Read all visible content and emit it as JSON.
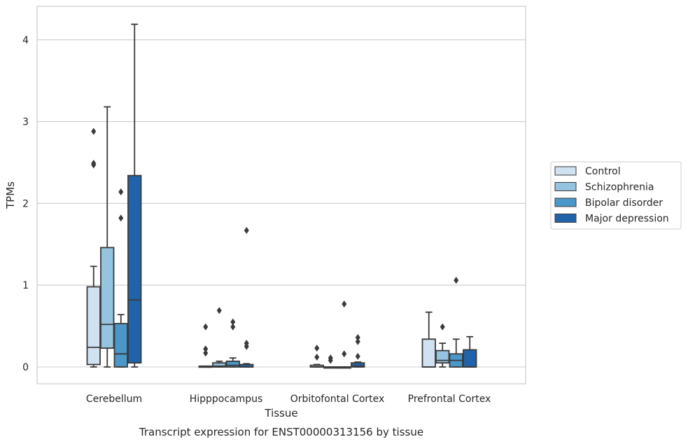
{
  "caption": "Transcript expression for ENST00000313156 by tissue",
  "chart_data": {
    "type": "box",
    "xlabel": "Tissue",
    "ylabel": "TPMs",
    "ylim": [
      -0.2,
      4.35
    ],
    "yticks": [
      0,
      1,
      2,
      3,
      4
    ],
    "grid": "horizontal",
    "legend_position": "right",
    "categories": [
      "Cerebellum",
      "Hipppocampus",
      "Orbitofontal Cortex",
      "Prefrontal Cortex"
    ],
    "series": [
      {
        "name": "Control",
        "color": "#d0e1f2",
        "boxes": [
          {
            "whislo": 0.0,
            "q1": 0.03,
            "med": 0.24,
            "q3": 0.98,
            "whishi": 1.23,
            "fliers": [
              2.47,
              2.49,
              2.88
            ]
          },
          {
            "whislo": 0.0,
            "q1": 0.0,
            "med": 0.0,
            "q3": 0.01,
            "whishi": 0.01,
            "fliers": [
              0.17,
              0.22,
              0.49
            ]
          },
          {
            "whislo": 0.0,
            "q1": 0.0,
            "med": 0.0,
            "q3": 0.02,
            "whishi": 0.03,
            "fliers": [
              0.12,
              0.23
            ]
          },
          {
            "whislo": 0.0,
            "q1": 0.0,
            "med": 0.0,
            "q3": 0.34,
            "whishi": 0.67,
            "fliers": []
          }
        ]
      },
      {
        "name": "Schizophrenia",
        "color": "#94c4df",
        "boxes": [
          {
            "whislo": 0.0,
            "q1": 0.23,
            "med": 0.52,
            "q3": 1.46,
            "whishi": 3.18,
            "fliers": []
          },
          {
            "whislo": 0.0,
            "q1": 0.0,
            "med": 0.01,
            "q3": 0.05,
            "whishi": 0.07,
            "fliers": [
              0.69
            ]
          },
          {
            "whislo": 0.0,
            "q1": 0.0,
            "med": 0.0,
            "q3": 0.0,
            "whishi": 0.0,
            "fliers": [
              0.08,
              0.11
            ]
          },
          {
            "whislo": 0.0,
            "q1": 0.05,
            "med": 0.08,
            "q3": 0.2,
            "whishi": 0.29,
            "fliers": [
              0.49
            ]
          }
        ]
      },
      {
        "name": "Bipolar disorder",
        "color": "#4a98c9",
        "boxes": [
          {
            "whislo": 0.0,
            "q1": 0.0,
            "med": 0.16,
            "q3": 0.53,
            "whishi": 0.64,
            "fliers": [
              1.82,
              2.14
            ]
          },
          {
            "whislo": 0.0,
            "q1": 0.0,
            "med": 0.02,
            "q3": 0.07,
            "whishi": 0.11,
            "fliers": [
              0.49,
              0.55
            ]
          },
          {
            "whislo": 0.0,
            "q1": 0.0,
            "med": 0.0,
            "q3": 0.0,
            "whishi": 0.0,
            "fliers": [
              0.16,
              0.77
            ]
          },
          {
            "whislo": 0.0,
            "q1": 0.0,
            "med": 0.08,
            "q3": 0.16,
            "whishi": 0.34,
            "fliers": [
              1.06
            ]
          }
        ]
      },
      {
        "name": "Major depression",
        "color": "#2163aa",
        "boxes": [
          {
            "whislo": 0.0,
            "q1": 0.05,
            "med": 0.82,
            "q3": 2.34,
            "whishi": 4.19,
            "fliers": []
          },
          {
            "whislo": 0.0,
            "q1": 0.0,
            "med": 0.0,
            "q3": 0.03,
            "whishi": 0.04,
            "fliers": [
              0.25,
              0.29,
              1.67
            ]
          },
          {
            "whislo": 0.0,
            "q1": 0.0,
            "med": 0.01,
            "q3": 0.05,
            "whishi": 0.06,
            "fliers": [
              0.13,
              0.31,
              0.36
            ]
          },
          {
            "whislo": 0.0,
            "q1": 0.0,
            "med": 0.0,
            "q3": 0.21,
            "whishi": 0.37,
            "fliers": []
          }
        ]
      }
    ]
  }
}
